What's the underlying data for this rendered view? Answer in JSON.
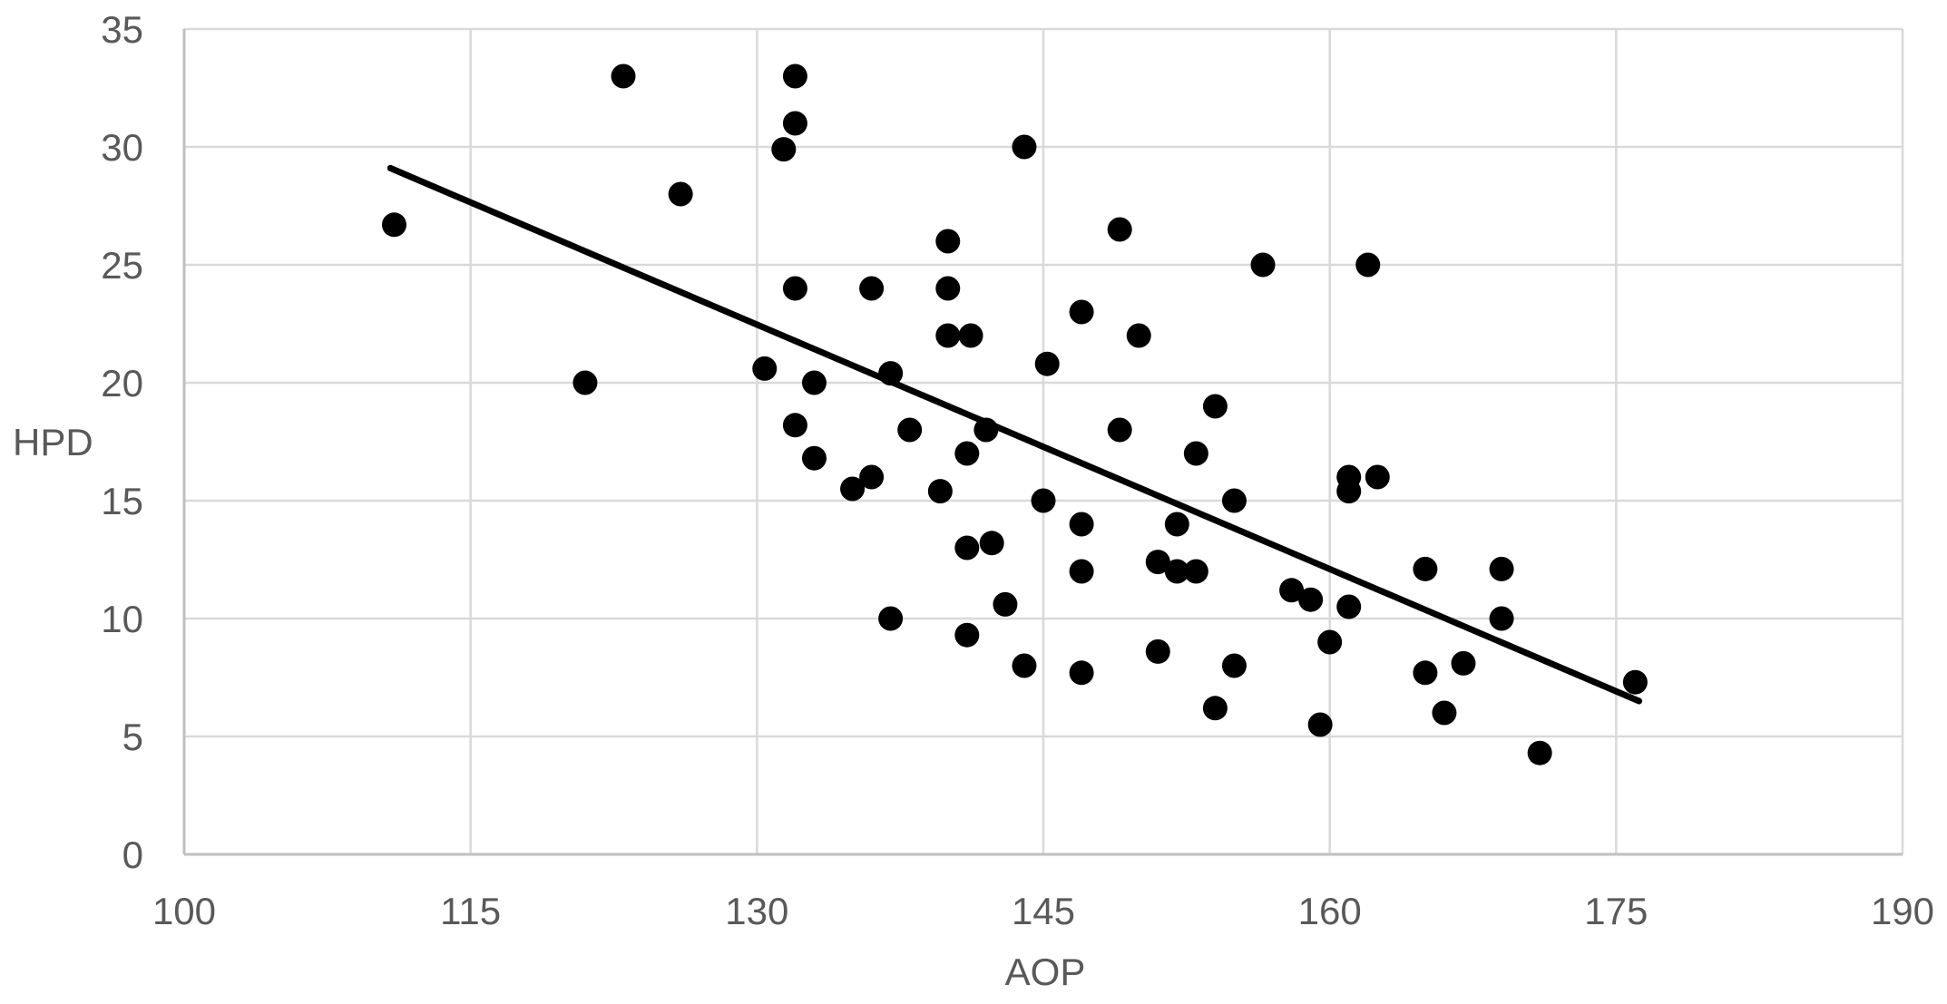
{
  "chart_data": {
    "type": "scatter",
    "title": "",
    "xlabel": "AOP",
    "ylabel": "HPD",
    "xlim": [
      100,
      190
    ],
    "ylim": [
      0,
      35
    ],
    "x_ticks": [
      100,
      115,
      130,
      145,
      160,
      175,
      190
    ],
    "y_ticks": [
      0,
      5,
      10,
      15,
      20,
      25,
      30,
      35
    ],
    "grid": true,
    "legend": "none",
    "marker": "filled-circle",
    "points": [
      [
        111,
        26.7
      ],
      [
        123,
        33
      ],
      [
        121,
        20
      ],
      [
        126,
        28
      ],
      [
        131.4,
        29.9
      ],
      [
        132,
        31
      ],
      [
        132,
        33
      ],
      [
        144,
        30
      ],
      [
        140,
        26
      ],
      [
        149,
        26.5
      ],
      [
        132,
        24
      ],
      [
        136,
        24
      ],
      [
        140,
        24
      ],
      [
        147,
        23
      ],
      [
        156.5,
        25
      ],
      [
        162,
        25
      ],
      [
        140,
        22
      ],
      [
        141.2,
        22
      ],
      [
        150,
        22
      ],
      [
        145.2,
        20.8
      ],
      [
        130.4,
        20.6
      ],
      [
        133,
        20
      ],
      [
        137,
        20.4
      ],
      [
        132,
        18.2
      ],
      [
        138,
        18
      ],
      [
        142,
        18
      ],
      [
        149,
        18
      ],
      [
        154,
        19
      ],
      [
        153,
        17
      ],
      [
        133,
        16.8
      ],
      [
        141,
        17
      ],
      [
        135,
        15.5
      ],
      [
        136,
        16
      ],
      [
        139.6,
        15.4
      ],
      [
        145,
        15
      ],
      [
        155,
        15
      ],
      [
        161,
        16
      ],
      [
        162.5,
        16
      ],
      [
        161,
        15.4
      ],
      [
        152,
        14
      ],
      [
        147,
        14
      ],
      [
        141,
        13
      ],
      [
        142.3,
        13.2
      ],
      [
        147,
        12
      ],
      [
        151,
        12.4
      ],
      [
        152,
        12
      ],
      [
        153,
        12
      ],
      [
        165,
        12.1
      ],
      [
        169,
        12.1
      ],
      [
        143,
        10.6
      ],
      [
        158,
        11.2
      ],
      [
        159,
        10.8
      ],
      [
        161,
        10.5
      ],
      [
        169,
        10
      ],
      [
        137,
        10
      ],
      [
        141,
        9.3
      ],
      [
        160,
        9
      ],
      [
        151,
        8.6
      ],
      [
        155,
        8
      ],
      [
        144,
        8
      ],
      [
        147,
        7.7
      ],
      [
        165,
        7.7
      ],
      [
        167,
        8.1
      ],
      [
        154,
        6.2
      ],
      [
        166,
        6
      ],
      [
        159.5,
        5.5
      ],
      [
        171,
        4.3
      ],
      [
        176,
        7.3
      ]
    ],
    "trendline": {
      "x1": 110.8,
      "y1": 29.1,
      "x2": 176.2,
      "y2": 6.5
    },
    "colors": {
      "point": "#000000",
      "trendline": "#000000",
      "gridline": "#d9d9d9",
      "axis_line": "#bfbfbf",
      "tick_label": "#595959",
      "axis_label": "#595959",
      "background": "#ffffff"
    }
  }
}
